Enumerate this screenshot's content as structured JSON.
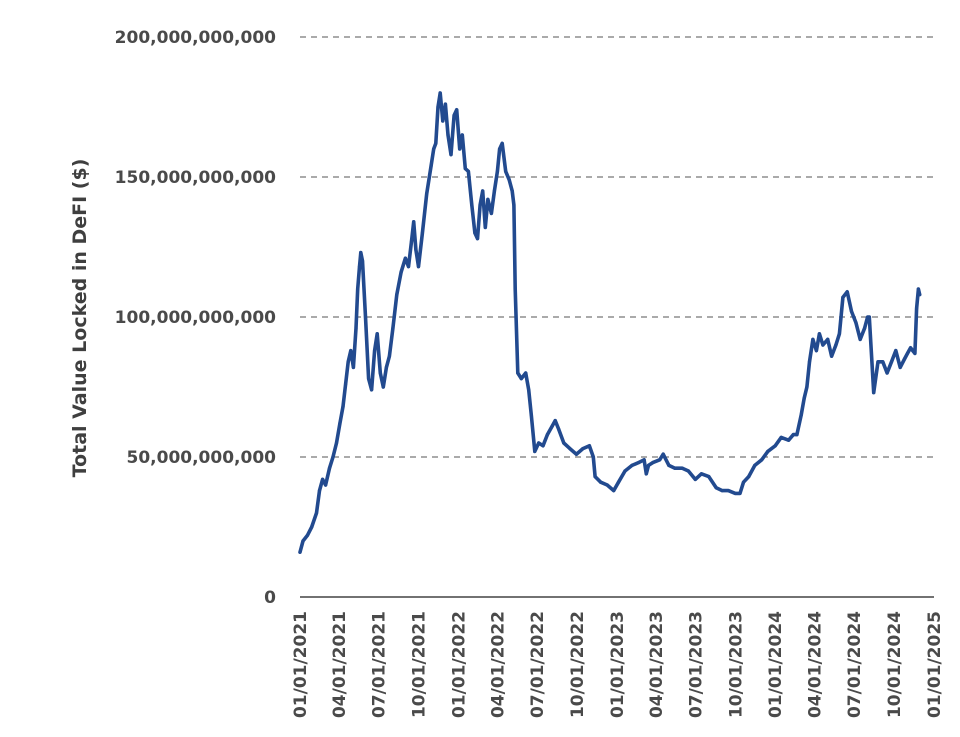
{
  "chart_data": {
    "type": "line",
    "title": "",
    "xlabel": "",
    "ylabel": "Total Value Locked in DeFI ($)",
    "ylim": [
      0,
      200000000000
    ],
    "xlim": [
      "2021-01-01",
      "2025-01-01"
    ],
    "grid": "horizontal dashed",
    "legend": "none",
    "y_ticks": [
      {
        "value": 0,
        "label": "0"
      },
      {
        "value": 50000000000,
        "label": "50,000,000,000"
      },
      {
        "value": 100000000000,
        "label": "100,000,000,000"
      },
      {
        "value": 150000000000,
        "label": "150,000,000,000"
      },
      {
        "value": 200000000000,
        "label": "200,000,000,000"
      }
    ],
    "x_ticks": [
      {
        "value": "2021-01-01",
        "label": "01/01/2021"
      },
      {
        "value": "2021-04-01",
        "label": "04/01/2021"
      },
      {
        "value": "2021-07-01",
        "label": "07/01/2021"
      },
      {
        "value": "2021-10-01",
        "label": "10/01/2021"
      },
      {
        "value": "2022-01-01",
        "label": "01/01/2022"
      },
      {
        "value": "2022-04-01",
        "label": "04/01/2022"
      },
      {
        "value": "2022-07-01",
        "label": "07/01/2022"
      },
      {
        "value": "2022-10-01",
        "label": "10/01/2022"
      },
      {
        "value": "2023-01-01",
        "label": "01/01/2023"
      },
      {
        "value": "2023-04-01",
        "label": "04/01/2023"
      },
      {
        "value": "2023-07-01",
        "label": "07/01/2023"
      },
      {
        "value": "2023-10-01",
        "label": "10/01/2023"
      },
      {
        "value": "2024-01-01",
        "label": "01/01/2024"
      },
      {
        "value": "2024-04-01",
        "label": "04/01/2024"
      },
      {
        "value": "2024-07-01",
        "label": "07/01/2024"
      },
      {
        "value": "2024-10-01",
        "label": "10/01/2024"
      },
      {
        "value": "2025-01-01",
        "label": "01/01/2025"
      }
    ],
    "series": [
      {
        "name": "Total Value Locked in DeFI",
        "color": "#224a8f",
        "x": [
          "2021-01-01",
          "2021-01-08",
          "2021-01-18",
          "2021-01-28",
          "2021-02-08",
          "2021-02-15",
          "2021-02-22",
          "2021-03-01",
          "2021-03-10",
          "2021-03-18",
          "2021-03-26",
          "2021-04-03",
          "2021-04-10",
          "2021-04-16",
          "2021-04-22",
          "2021-04-28",
          "2021-05-04",
          "2021-05-10",
          "2021-05-14",
          "2021-05-18",
          "2021-05-21",
          "2021-05-25",
          "2021-06-01",
          "2021-06-08",
          "2021-06-15",
          "2021-06-22",
          "2021-06-28",
          "2021-07-05",
          "2021-07-12",
          "2021-07-19",
          "2021-07-26",
          "2021-08-03",
          "2021-08-12",
          "2021-08-22",
          "2021-09-01",
          "2021-09-08",
          "2021-09-15",
          "2021-09-20",
          "2021-09-25",
          "2021-10-01",
          "2021-10-10",
          "2021-10-20",
          "2021-10-30",
          "2021-11-05",
          "2021-11-10",
          "2021-11-15",
          "2021-11-20",
          "2021-11-26",
          "2021-12-02",
          "2021-12-08",
          "2021-12-15",
          "2021-12-22",
          "2021-12-28",
          "2022-01-04",
          "2022-01-10",
          "2022-01-17",
          "2022-01-24",
          "2022-02-01",
          "2022-02-08",
          "2022-02-14",
          "2022-02-20",
          "2022-02-26",
          "2022-03-04",
          "2022-03-10",
          "2022-03-18",
          "2022-03-25",
          "2022-04-01",
          "2022-04-06",
          "2022-04-12",
          "2022-04-20",
          "2022-04-28",
          "2022-05-05",
          "2022-05-09",
          "2022-05-12",
          "2022-05-18",
          "2022-05-26",
          "2022-06-05",
          "2022-06-12",
          "2022-06-18",
          "2022-06-26",
          "2022-07-05",
          "2022-07-15",
          "2022-07-25",
          "2022-08-05",
          "2022-08-12",
          "2022-08-20",
          "2022-09-01",
          "2022-09-15",
          "2022-09-30",
          "2022-10-15",
          "2022-10-30",
          "2022-11-08",
          "2022-11-12",
          "2022-11-25",
          "2022-12-10",
          "2022-12-25",
          "2023-01-05",
          "2023-01-20",
          "2023-02-05",
          "2023-02-20",
          "2023-03-05",
          "2023-03-10",
          "2023-03-15",
          "2023-03-25",
          "2023-04-10",
          "2023-04-18",
          "2023-05-01",
          "2023-05-15",
          "2023-06-01",
          "2023-06-15",
          "2023-07-01",
          "2023-07-15",
          "2023-08-01",
          "2023-08-18",
          "2023-09-01",
          "2023-09-15",
          "2023-10-01",
          "2023-10-12",
          "2023-10-20",
          "2023-11-01",
          "2023-11-15",
          "2023-12-01",
          "2023-12-15",
          "2024-01-01",
          "2024-01-15",
          "2024-02-01",
          "2024-02-12",
          "2024-02-20",
          "2024-03-01",
          "2024-03-08",
          "2024-03-14",
          "2024-03-20",
          "2024-03-28",
          "2024-04-05",
          "2024-04-12",
          "2024-04-20",
          "2024-05-01",
          "2024-05-10",
          "2024-05-20",
          "2024-05-28",
          "2024-06-05",
          "2024-06-15",
          "2024-06-25",
          "2024-07-05",
          "2024-07-15",
          "2024-07-25",
          "2024-08-01",
          "2024-08-05",
          "2024-08-15",
          "2024-08-25",
          "2024-09-05",
          "2024-09-15",
          "2024-09-25",
          "2024-10-05",
          "2024-10-15",
          "2024-10-25",
          "2024-11-01",
          "2024-11-08",
          "2024-11-13",
          "2024-11-18",
          "2024-11-22",
          "2024-11-26",
          "2024-11-29"
        ],
        "values": [
          16000000000,
          20000000000,
          22000000000,
          25000000000,
          30000000000,
          38000000000,
          42000000000,
          40000000000,
          46000000000,
          50000000000,
          55000000000,
          62000000000,
          68000000000,
          76000000000,
          84000000000,
          88000000000,
          82000000000,
          96000000000,
          110000000000,
          118000000000,
          123000000000,
          120000000000,
          100000000000,
          78000000000,
          74000000000,
          88000000000,
          94000000000,
          80000000000,
          75000000000,
          82000000000,
          86000000000,
          96000000000,
          108000000000,
          116000000000,
          121000000000,
          118000000000,
          127000000000,
          134000000000,
          124000000000,
          118000000000,
          130000000000,
          144000000000,
          154000000000,
          160000000000,
          162000000000,
          175000000000,
          180000000000,
          170000000000,
          176000000000,
          165000000000,
          158000000000,
          172000000000,
          174000000000,
          160000000000,
          165000000000,
          153000000000,
          152000000000,
          140000000000,
          130000000000,
          128000000000,
          140000000000,
          145000000000,
          132000000000,
          142000000000,
          137000000000,
          145000000000,
          152000000000,
          160000000000,
          162000000000,
          152000000000,
          149000000000,
          145000000000,
          140000000000,
          110000000000,
          80000000000,
          78000000000,
          80000000000,
          74000000000,
          65000000000,
          52000000000,
          55000000000,
          54000000000,
          58000000000,
          61000000000,
          63000000000,
          60000000000,
          55000000000,
          53000000000,
          51000000000,
          53000000000,
          54000000000,
          50000000000,
          43000000000,
          41000000000,
          40000000000,
          38000000000,
          41000000000,
          45000000000,
          47000000000,
          48000000000,
          49000000000,
          44000000000,
          47000000000,
          48000000000,
          49000000000,
          51000000000,
          47000000000,
          46000000000,
          46000000000,
          45000000000,
          42000000000,
          44000000000,
          43000000000,
          39000000000,
          38000000000,
          38000000000,
          37000000000,
          37000000000,
          41000000000,
          43000000000,
          47000000000,
          49000000000,
          52000000000,
          54000000000,
          57000000000,
          56000000000,
          58000000000,
          58000000000,
          65000000000,
          71000000000,
          75000000000,
          84000000000,
          92000000000,
          88000000000,
          94000000000,
          90000000000,
          92000000000,
          86000000000,
          90000000000,
          94000000000,
          107000000000,
          109000000000,
          102000000000,
          98000000000,
          92000000000,
          96000000000,
          100000000000,
          100000000000,
          73000000000,
          84000000000,
          84000000000,
          80000000000,
          84000000000,
          88000000000,
          82000000000,
          85000000000,
          87000000000,
          89000000000,
          88000000000,
          87000000000,
          103000000000,
          110000000000,
          108000000000
        ]
      }
    ]
  }
}
